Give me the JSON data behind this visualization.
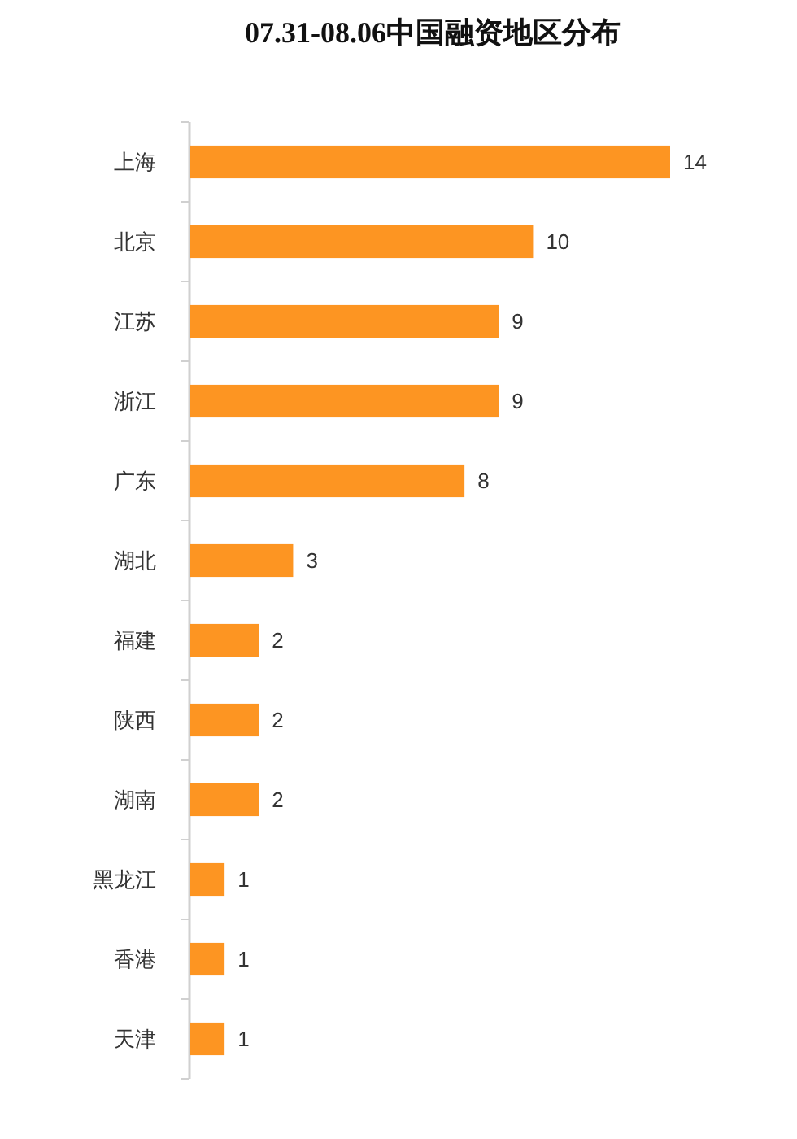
{
  "chart_data": {
    "type": "bar",
    "title": "07.31-08.06中国融资地区分布",
    "orientation": "horizontal",
    "categories": [
      "上海",
      "北京",
      "江苏",
      "浙江",
      "广东",
      "湖北",
      "福建",
      "陕西",
      "湖南",
      "黑龙江",
      "香港",
      "天津"
    ],
    "values": [
      14,
      10,
      9,
      9,
      8,
      3,
      2,
      2,
      2,
      1,
      1,
      1
    ],
    "color": "#fd9522",
    "data_labels": true
  }
}
